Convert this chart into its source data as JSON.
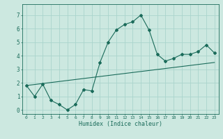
{
  "title": "",
  "xlabel": "Humidex (Indice chaleur)",
  "ylabel": "",
  "bg_color": "#cce8e0",
  "line_color": "#1a6b5a",
  "xlim": [
    -0.5,
    23.5
  ],
  "ylim": [
    -0.3,
    7.8
  ],
  "xticks": [
    0,
    1,
    2,
    3,
    4,
    5,
    6,
    7,
    8,
    9,
    10,
    11,
    12,
    13,
    14,
    15,
    16,
    17,
    18,
    19,
    20,
    21,
    22,
    23
  ],
  "yticks": [
    0,
    1,
    2,
    3,
    4,
    5,
    6,
    7
  ],
  "curve1_x": [
    0,
    1,
    2,
    3,
    4,
    5,
    6,
    7,
    8,
    9,
    10,
    11,
    12,
    13,
    14,
    15,
    16,
    17,
    18,
    19,
    20,
    21,
    22,
    23
  ],
  "curve1_y": [
    1.8,
    1.0,
    1.9,
    0.7,
    0.4,
    0.0,
    0.4,
    1.5,
    1.4,
    3.5,
    5.0,
    5.9,
    6.3,
    6.5,
    7.0,
    5.9,
    4.1,
    3.6,
    3.8,
    4.1,
    4.1,
    4.3,
    4.8,
    4.2
  ],
  "curve2_x": [
    0,
    23
  ],
  "curve2_y": [
    1.8,
    3.5
  ],
  "grid_color": "#aad4cc",
  "marker": "D",
  "marker_size": 2.0,
  "line_width": 0.8
}
